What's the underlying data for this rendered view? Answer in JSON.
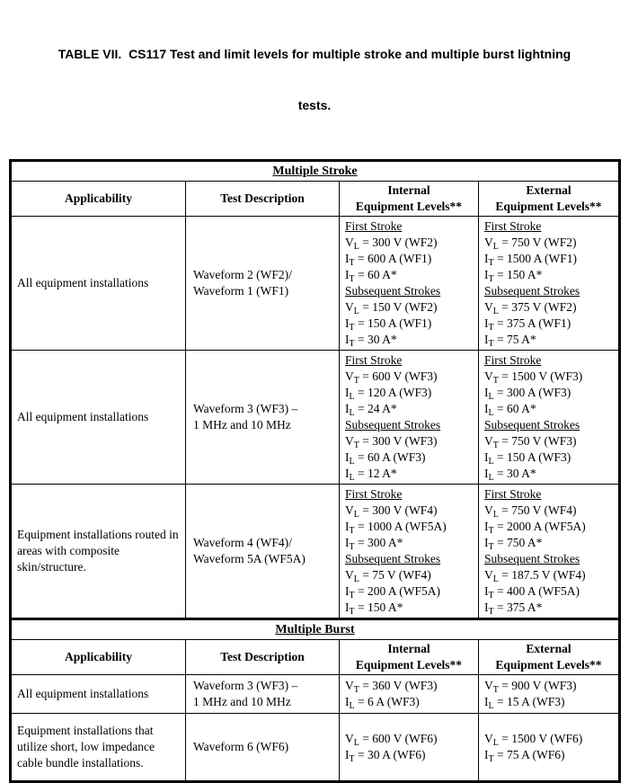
{
  "title": {
    "line1": "TABLE VII.  CS117 Test and limit levels for multiple stroke and multiple burst lightning",
    "line2": "tests."
  },
  "colors": {
    "border": "#000000",
    "text": "#000000",
    "background": "#ffffff"
  },
  "sections": [
    {
      "name": "Multiple Stroke",
      "columns": [
        {
          "lines": [
            "Applicability"
          ]
        },
        {
          "lines": [
            "Test Description"
          ]
        },
        {
          "lines": [
            "Internal",
            "Equipment Levels**"
          ]
        },
        {
          "lines": [
            "External",
            "Equipment Levels**"
          ]
        }
      ],
      "rows": [
        {
          "applicability": "All equipment installations",
          "test_description": [
            "Waveform 2 (WF2)/",
            "Waveform 1 (WF1)"
          ],
          "internal": [
            {
              "head": "First Stroke"
            },
            {
              "sym": "V",
              "sub": "L",
              "rest": "= 300 V (WF2)"
            },
            {
              "sym": "I",
              "sub": "T",
              "rest": "= 600 A (WF1)"
            },
            {
              "sym": "I",
              "sub": "T",
              "rest": "= 60 A*"
            },
            {
              "head": "Subsequent Strokes"
            },
            {
              "sym": "V",
              "sub": "L",
              "rest": "= 150 V (WF2)"
            },
            {
              "sym": "I",
              "sub": "T",
              "rest": "= 150 A (WF1)"
            },
            {
              "sym": "I",
              "sub": "T",
              "rest": "= 30 A*"
            }
          ],
          "external": [
            {
              "head": "First Stroke"
            },
            {
              "sym": "V",
              "sub": "L",
              "rest": "= 750 V (WF2)"
            },
            {
              "sym": "I",
              "sub": "T",
              "rest": "= 1500 A (WF1)"
            },
            {
              "sym": "I",
              "sub": "T",
              "rest": "= 150 A*"
            },
            {
              "head": "Subsequent Strokes"
            },
            {
              "sym": "V",
              "sub": "L",
              "rest": "= 375 V (WF2)"
            },
            {
              "sym": "I",
              "sub": "T",
              "rest": "= 375 A (WF1)"
            },
            {
              "sym": "I",
              "sub": "T",
              "rest": "= 75 A*"
            }
          ]
        },
        {
          "applicability": "All equipment installations",
          "test_description": [
            "Waveform 3 (WF3) –",
            "1 MHz and 10 MHz"
          ],
          "internal": [
            {
              "head": "First Stroke"
            },
            {
              "sym": "V",
              "sub": "T",
              "rest": "= 600 V (WF3)"
            },
            {
              "sym": "I",
              "sub": "L",
              "rest": "= 120 A (WF3)"
            },
            {
              "sym": "I",
              "sub": "L",
              "rest": "= 24 A*"
            },
            {
              "head": "Subsequent Strokes"
            },
            {
              "sym": "V",
              "sub": "T",
              "rest": "= 300 V (WF3)"
            },
            {
              "sym": "I",
              "sub": "L",
              "rest": "= 60 A (WF3)"
            },
            {
              "sym": "I",
              "sub": "L",
              "rest": "= 12 A*"
            }
          ],
          "external": [
            {
              "head": "First Stroke"
            },
            {
              "sym": "V",
              "sub": "T",
              "rest": "= 1500 V (WF3)"
            },
            {
              "sym": "I",
              "sub": "L",
              "rest": "= 300 A (WF3)"
            },
            {
              "sym": "I",
              "sub": "L",
              "rest": "= 60 A*"
            },
            {
              "head": "Subsequent Strokes"
            },
            {
              "sym": "V",
              "sub": "T",
              "rest": "= 750 V (WF3)"
            },
            {
              "sym": "I",
              "sub": "L",
              "rest": "= 150 A (WF3)"
            },
            {
              "sym": "I",
              "sub": "L",
              "rest": "= 30 A*"
            }
          ]
        },
        {
          "applicability": "Equipment installations routed in areas with composite skin/structure.",
          "test_description": [
            "Waveform 4 (WF4)/",
            "Waveform 5A (WF5A)"
          ],
          "internal": [
            {
              "head": "First Stroke"
            },
            {
              "sym": "V",
              "sub": "L",
              "rest": "= 300 V (WF4)"
            },
            {
              "sym": "I",
              "sub": "T",
              "rest": "= 1000 A (WF5A)"
            },
            {
              "sym": "I",
              "sub": "T",
              "rest": "= 300 A*"
            },
            {
              "head": "Subsequent Strokes"
            },
            {
              "sym": "V",
              "sub": "L",
              "rest": "= 75 V (WF4)"
            },
            {
              "sym": "I",
              "sub": "T",
              "rest": "= 200 A (WF5A)"
            },
            {
              "sym": "I",
              "sub": "T",
              "rest": "= 150 A*"
            }
          ],
          "external": [
            {
              "head": "First Stroke"
            },
            {
              "sym": "V",
              "sub": "L",
              "rest": "= 750 V (WF4)"
            },
            {
              "sym": "I",
              "sub": "T",
              "rest": "= 2000 A (WF5A)"
            },
            {
              "sym": "I",
              "sub": "T",
              "rest": "= 750 A*"
            },
            {
              "head": "Subsequent Strokes"
            },
            {
              "sym": "V",
              "sub": "L",
              "rest": "= 187.5 V (WF4)"
            },
            {
              "sym": "I",
              "sub": "T",
              "rest": "= 400 A (WF5A)"
            },
            {
              "sym": "I",
              "sub": "T",
              "rest": "= 375 A*"
            }
          ]
        }
      ]
    },
    {
      "name": "Multiple Burst",
      "columns": [
        {
          "lines": [
            "Applicability"
          ]
        },
        {
          "lines": [
            "Test Description"
          ]
        },
        {
          "lines": [
            "Internal",
            "Equipment Levels**"
          ]
        },
        {
          "lines": [
            "External",
            "Equipment Levels**"
          ]
        }
      ],
      "rows": [
        {
          "applicability": "All equipment installations",
          "test_description": [
            "Waveform 3 (WF3) –",
            "1 MHz and 10 MHz"
          ],
          "internal": [
            {
              "sym": "V",
              "sub": "T",
              "rest": "= 360 V (WF3)"
            },
            {
              "sym": "I",
              "sub": "L",
              "rest": "= 6 A (WF3)"
            }
          ],
          "external": [
            {
              "sym": "V",
              "sub": "T",
              "rest": "= 900 V (WF3)"
            },
            {
              "sym": "I",
              "sub": "L",
              "rest": "= 15 A (WF3)"
            }
          ]
        },
        {
          "applicability": "Equipment installations that utilize short, low impedance cable bundle installations.",
          "test_description": [
            "Waveform 6 (WF6)"
          ],
          "internal": [
            {
              "sym": "V",
              "sub": "L",
              "rest": "= 600 V (WF6)"
            },
            {
              "sym": "I",
              "sub": "T",
              "rest": "= 30 A (WF6)"
            }
          ],
          "external": [
            {
              "sym": "V",
              "sub": "L",
              "rest": "= 1500 V (WF6)"
            },
            {
              "sym": "I",
              "sub": "T",
              "rest": "= 75 A (WF6)"
            }
          ]
        }
      ]
    }
  ]
}
